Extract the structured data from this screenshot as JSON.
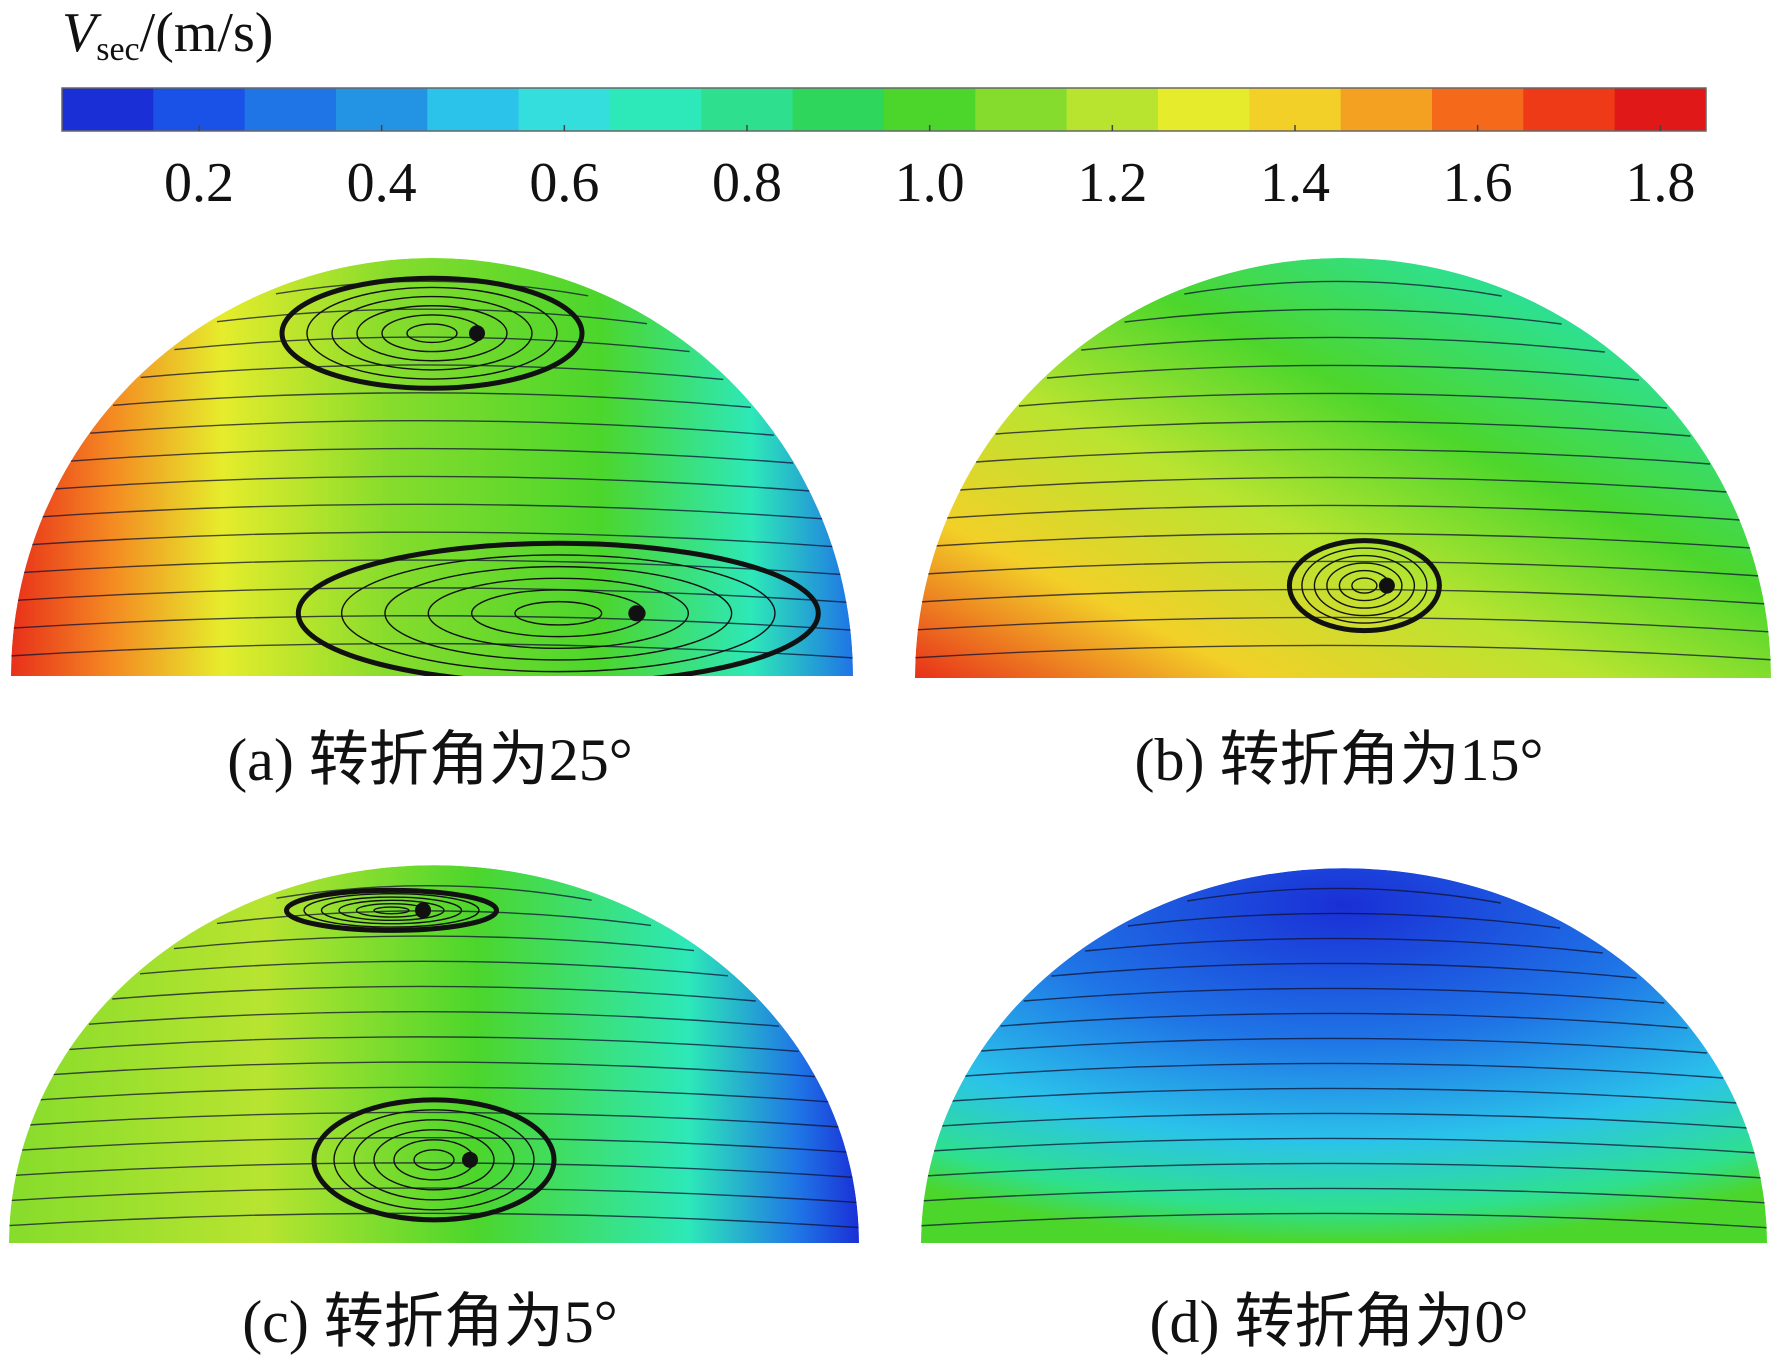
{
  "chart_data": {
    "type": "colorbar-figure",
    "colorbar": {
      "symbol": "V",
      "subscript": "sec",
      "unit": "/(m/s)",
      "clim": [
        0.05,
        1.85
      ],
      "ticks": [
        0.2,
        0.4,
        0.6,
        0.8,
        {
          "value": 1,
          "label": "1.0"
        },
        1.2,
        1.4,
        1.6,
        1.8
      ],
      "colors": [
        "#1a2fd6",
        "#1a52e8",
        "#1f74e6",
        "#2394e4",
        "#2bc3ea",
        "#33dedd",
        "#2de8b8",
        "#2ee08e",
        "#2fd65c",
        "#4cd62c",
        "#86dc2c",
        "#b8e430",
        "#e6ec2c",
        "#f2d028",
        "#f4a020",
        "#f46a1a",
        "#ee3a16",
        "#e01818"
      ]
    },
    "panels": [
      {
        "caption": "(a) 转折角为25°"
      },
      {
        "caption": "(b) 转折角为15°"
      },
      {
        "caption": "(c) 转折角为5°"
      },
      {
        "caption": "(d) 转折角为0°"
      }
    ]
  }
}
